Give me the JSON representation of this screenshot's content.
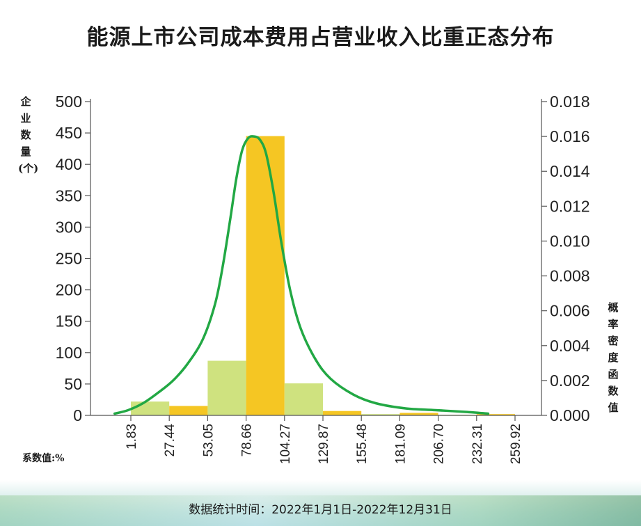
{
  "chart_data": {
    "type": "bar",
    "title": "能源上市公司成本费用占营业收入比重正态分布",
    "ylabel": "企业数量(个)",
    "y2label": "概率密度函数值",
    "xlabel": "系数值:%",
    "footnote": "数据统计时间：2022年1月1日-2022年12月31日",
    "ylim": [
      0,
      500
    ],
    "y2lim": [
      0,
      0.018
    ],
    "yticks": [
      "0",
      "50",
      "100",
      "150",
      "200",
      "250",
      "300",
      "350",
      "400",
      "450",
      "500"
    ],
    "y2ticks": [
      "0.000",
      "0.002",
      "0.004",
      "0.006",
      "0.008",
      "0.010",
      "0.012",
      "0.014",
      "0.016",
      "0.018"
    ],
    "x_tick_labels": [
      "1.83",
      "27.44",
      "53.05",
      "78.66",
      "104.27",
      "129.87",
      "155.48",
      "181.09",
      "206.70",
      "232.31",
      "259.92"
    ],
    "bars": [
      {
        "value": 22,
        "color": "#cfe27f"
      },
      {
        "value": 15,
        "color": "#f5c623"
      },
      {
        "value": 87,
        "color": "#cfe27f"
      },
      {
        "value": 445,
        "color": "#f5c623"
      },
      {
        "value": 51,
        "color": "#cfe27f"
      },
      {
        "value": 7,
        "color": "#f5c623"
      },
      {
        "value": 2,
        "color": "#cfe27f"
      },
      {
        "value": 4,
        "color": "#f5c623"
      },
      {
        "value": 1,
        "color": "#cfe27f"
      },
      {
        "value": 2,
        "color": "#f5c623"
      }
    ],
    "density_curve": {
      "color": "#22a844",
      "points": [
        [
          -9,
          0.0001
        ],
        [
          0,
          0.0003
        ],
        [
          10,
          0.0007
        ],
        [
          20,
          0.0013
        ],
        [
          30,
          0.002
        ],
        [
          40,
          0.003
        ],
        [
          50,
          0.0044
        ],
        [
          58,
          0.0064
        ],
        [
          63,
          0.0085
        ],
        [
          68,
          0.0112
        ],
        [
          72,
          0.0135
        ],
        [
          76,
          0.0152
        ],
        [
          80,
          0.0159
        ],
        [
          84,
          0.016
        ],
        [
          88,
          0.0158
        ],
        [
          92,
          0.015
        ],
        [
          97,
          0.0128
        ],
        [
          102,
          0.01
        ],
        [
          108,
          0.0072
        ],
        [
          115,
          0.005
        ],
        [
          125,
          0.0032
        ],
        [
          135,
          0.0021
        ],
        [
          150,
          0.0012
        ],
        [
          165,
          0.0007
        ],
        [
          185,
          0.0004
        ],
        [
          205,
          0.0003
        ],
        [
          225,
          0.0002
        ],
        [
          240,
          0.0001
        ]
      ]
    },
    "grid": false,
    "legend": "none"
  }
}
